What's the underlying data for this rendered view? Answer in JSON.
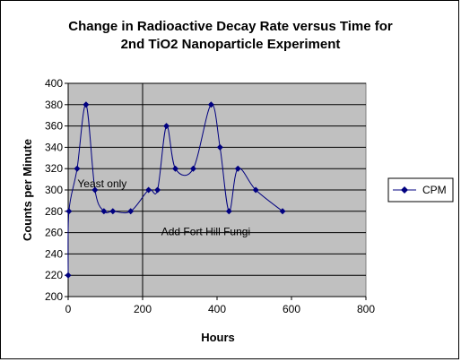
{
  "chart_data": {
    "type": "scatter",
    "title_lines": [
      "Change in Radioactive Decay Rate versus Time for",
      "2nd TiO2 Nanoparticle Experiment"
    ],
    "xlabel": "Hours",
    "ylabel": "Counts per Minute",
    "xlim": [
      0,
      800
    ],
    "ylim": [
      200,
      400
    ],
    "x_ticks": [
      0,
      200,
      400,
      600,
      800
    ],
    "y_ticks": [
      200,
      220,
      240,
      260,
      280,
      300,
      320,
      340,
      360,
      380,
      400
    ],
    "grid": "horizontal",
    "line_style": "smoothed",
    "plot_background": "#c0c0c0",
    "marker": "diamond",
    "series": [
      {
        "name": "CPM",
        "color": "#000080",
        "x": [
          0,
          2,
          24,
          48,
          72,
          96,
          120,
          168,
          216,
          240,
          264,
          288,
          336,
          384,
          408,
          432,
          456,
          504,
          576
        ],
        "y": [
          220,
          280,
          320,
          380,
          300,
          280,
          280,
          280,
          300,
          300,
          360,
          320,
          320,
          380,
          340,
          280,
          320,
          300,
          280
        ]
      }
    ],
    "reference_line": {
      "x": 200,
      "color": "#000000"
    },
    "annotations": [
      {
        "text": "Yeast only",
        "x": 25,
        "y": 306
      },
      {
        "text": "Add Fort Hill Fungi",
        "x": 250,
        "y": 261
      }
    ],
    "legend": {
      "placement": "right",
      "entries": [
        "CPM"
      ]
    }
  }
}
